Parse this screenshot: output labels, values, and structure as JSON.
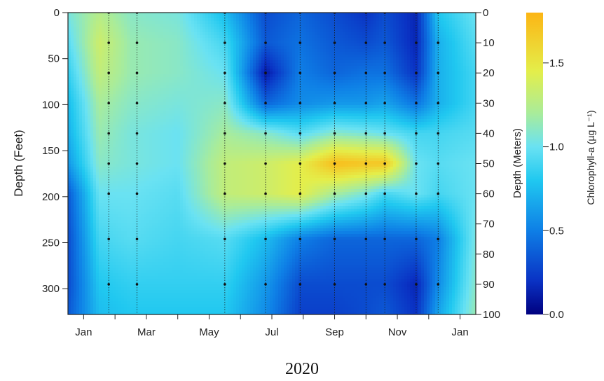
{
  "chart_data": {
    "type": "heatmap",
    "title": "",
    "xlabel": "2020",
    "ylabel_left": "Depth (Feet)",
    "ylabel_right": "Depth (Meters)",
    "colorbar_label": "Chlorophyll-a (µg L⁻¹)",
    "x_tick_labels": [
      "Jan",
      "Mar",
      "May",
      "Jul",
      "Sep",
      "Nov",
      "Jan"
    ],
    "x_tick_months": [
      1,
      3,
      5,
      7,
      9,
      11,
      13
    ],
    "x_range_months": [
      0.5,
      13.5
    ],
    "y_left_ticks_ft": [
      0,
      50,
      100,
      150,
      200,
      250,
      300
    ],
    "y_left_range_ft": [
      0,
      328
    ],
    "y_right_ticks_m": [
      0,
      10,
      20,
      30,
      40,
      50,
      60,
      70,
      80,
      90,
      100
    ],
    "colorbar_ticks": [
      "1.5",
      "1.0",
      "0.5",
      "0.0"
    ],
    "colorbar_range": [
      0,
      1.8
    ],
    "sample_months": [
      1.8,
      2.7,
      5.5,
      6.8,
      7.9,
      9.0,
      10.0,
      10.6,
      11.6,
      12.3
    ],
    "sample_depths_m": [
      0,
      10,
      20,
      30,
      40,
      50,
      60,
      75,
      90
    ],
    "grid_months": [
      0.5,
      1.5,
      2.5,
      4.0,
      5.5,
      6.8,
      7.9,
      9.0,
      10.0,
      10.6,
      11.6,
      12.3,
      13.5
    ],
    "grid_depths_m": [
      0,
      10,
      20,
      30,
      40,
      50,
      60,
      75,
      90,
      100
    ],
    "chlorophyll_grid": [
      [
        1.05,
        0.95,
        0.85,
        0.75,
        0.7,
        0.6,
        0.35,
        0.3,
        0.3,
        0.35
      ],
      [
        1.25,
        1.35,
        1.3,
        1.2,
        1.15,
        1.1,
        1.0,
        0.9,
        0.8,
        0.75
      ],
      [
        1.1,
        1.15,
        1.15,
        1.1,
        1.05,
        1.05,
        1.0,
        0.95,
        0.85,
        0.8
      ],
      [
        1.05,
        1.1,
        1.1,
        1.05,
        1.0,
        1.0,
        0.95,
        0.9,
        0.85,
        0.8
      ],
      [
        0.75,
        0.9,
        1.0,
        1.1,
        1.2,
        1.3,
        1.3,
        0.95,
        0.85,
        0.8
      ],
      [
        0.3,
        0.35,
        0.1,
        0.4,
        1.1,
        1.35,
        1.35,
        0.75,
        0.6,
        0.55
      ],
      [
        0.4,
        0.45,
        0.5,
        0.55,
        0.95,
        1.45,
        1.45,
        0.5,
        0.3,
        0.25
      ],
      [
        0.3,
        0.35,
        0.4,
        0.6,
        1.1,
        1.75,
        1.2,
        0.4,
        0.3,
        0.25
      ],
      [
        0.2,
        0.3,
        0.45,
        0.6,
        1.05,
        1.7,
        1.05,
        0.4,
        0.3,
        0.3
      ],
      [
        0.3,
        0.35,
        0.45,
        0.65,
        1.0,
        1.7,
        0.9,
        0.4,
        0.3,
        0.35
      ],
      [
        0.15,
        0.15,
        0.2,
        0.45,
        0.9,
        1.0,
        1.0,
        0.4,
        0.15,
        0.2
      ],
      [
        0.8,
        0.7,
        0.7,
        0.7,
        0.9,
        0.95,
        0.9,
        0.5,
        0.55,
        0.65
      ],
      [
        1.0,
        0.95,
        0.9,
        0.9,
        0.95,
        1.0,
        1.0,
        1.05,
        1.1,
        1.15
      ]
    ],
    "colors": {
      "0.0": "#00007f",
      "0.2": "#0a32c4",
      "0.5": "#0e7fe6",
      "0.8": "#20c8f0",
      "1.0": "#6ae2f2",
      "1.2": "#a9ec9a",
      "1.45": "#e4ee4a",
      "1.8": "#fcb514"
    }
  }
}
